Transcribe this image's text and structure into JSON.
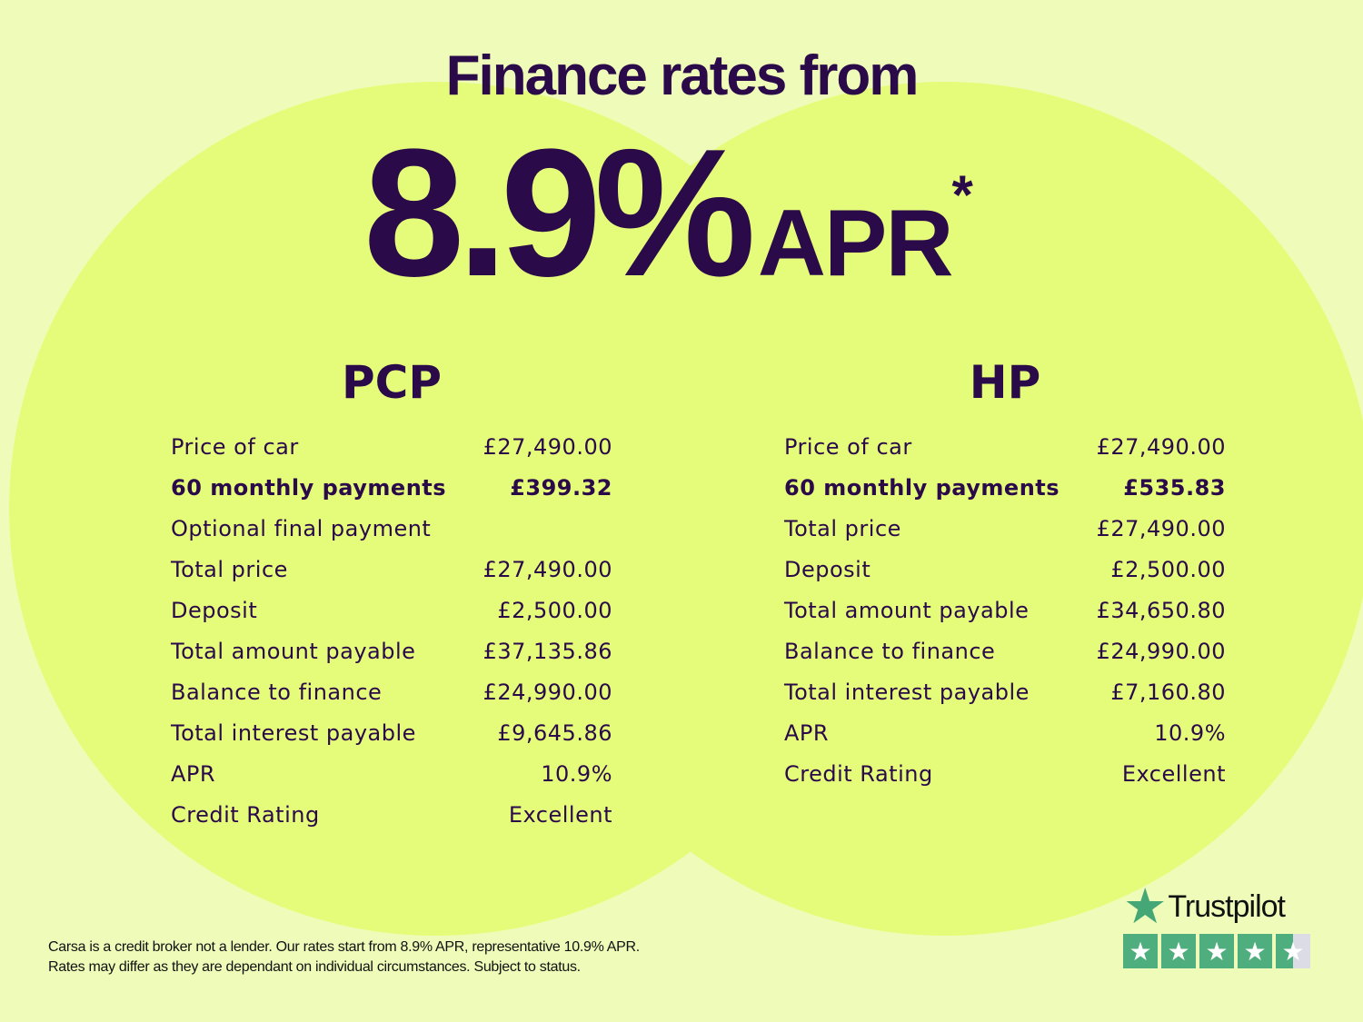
{
  "headline": "Finance rates from",
  "rate": "8.9%",
  "rate_suffix": "APR",
  "asterisk": "*",
  "pcp": {
    "title": "PCP",
    "rows": [
      {
        "label": "Price of car",
        "value": "£27,490.00"
      },
      {
        "label": "60 monthly payments",
        "value": "£399.32",
        "bold": true
      },
      {
        "label": "Optional final payment",
        "value": ""
      },
      {
        "label": "Total price",
        "value": "£27,490.00"
      },
      {
        "label": "Deposit",
        "value": "£2,500.00"
      },
      {
        "label": "Total amount payable",
        "value": "£37,135.86"
      },
      {
        "label": "Balance to finance",
        "value": "£24,990.00"
      },
      {
        "label": "Total interest payable",
        "value": "£9,645.86"
      },
      {
        "label": "APR",
        "value": "10.9%"
      },
      {
        "label": "Credit Rating",
        "value": "Excellent"
      }
    ]
  },
  "hp": {
    "title": "HP",
    "rows": [
      {
        "label": "Price of car",
        "value": "£27,490.00"
      },
      {
        "label": "60 monthly payments",
        "value": "£535.83",
        "bold": true
      },
      {
        "label": "Total price",
        "value": "£27,490.00"
      },
      {
        "label": "Deposit",
        "value": "£2,500.00"
      },
      {
        "label": "Total amount payable",
        "value": "£34,650.80"
      },
      {
        "label": "Balance to finance",
        "value": "£24,990.00"
      },
      {
        "label": "Total interest payable",
        "value": "£7,160.80"
      },
      {
        "label": "APR",
        "value": "10.9%"
      },
      {
        "label": "Credit Rating",
        "value": "Excellent"
      }
    ]
  },
  "footer": {
    "line1": "Carsa is a credit broker not a lender. Our rates start from 8.9% APR, representative 10.9% APR.",
    "line2": "Rates may differ as they are dependant on individual circumstances. Subject to status."
  },
  "trustpilot": {
    "name": "Trustpilot",
    "rating_stars": 4.5,
    "max_stars": 5,
    "icon": "star-icon"
  },
  "colors": {
    "background": "#effbb9",
    "circle": "#e5fc7a",
    "text": "#2b0a4a",
    "trustpilot_green": "#4fae7e"
  }
}
